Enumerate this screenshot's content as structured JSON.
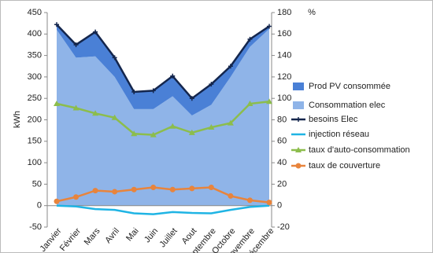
{
  "chart_data": {
    "type": "line",
    "y_label": "kWh",
    "y2_label": "%",
    "categories": [
      "Janvier",
      "Février",
      "Mars",
      "Avril",
      "Mai",
      "Juin",
      "Juillet",
      "Aout",
      "septembre",
      "Octobre",
      "Novembre",
      "Décembre"
    ],
    "ylim": [
      -50,
      450
    ],
    "yticks": [
      -50,
      0,
      50,
      100,
      150,
      200,
      250,
      300,
      350,
      400,
      450
    ],
    "y2lim": [
      -20,
      180
    ],
    "y2ticks": [
      -20,
      0,
      20,
      40,
      60,
      80,
      100,
      120,
      140,
      160,
      180
    ],
    "stacked": true,
    "series": [
      {
        "name": "Prod PV consommée",
        "kind": "area",
        "color": "#4a80d6",
        "values": [
          12,
          30,
          57,
          45,
          40,
          43,
          47,
          40,
          48,
          25,
          18,
          6
        ]
      },
      {
        "name": "Consommation  elec",
        "kind": "area",
        "color": "#8fb4e8",
        "values": [
          410,
          345,
          348,
          300,
          225,
          225,
          255,
          210,
          235,
          300,
          370,
          412
        ]
      },
      {
        "name": "besoins Elec",
        "kind": "line",
        "marker": "plus",
        "color": "#14264d",
        "values": [
          422,
          375,
          405,
          345,
          265,
          268,
          302,
          250,
          283,
          325,
          388,
          418
        ]
      },
      {
        "name": "injection réseau",
        "kind": "line",
        "color": "#1fb4e4",
        "values": [
          0,
          -2,
          -8,
          -10,
          -18,
          -20,
          -15,
          -17,
          -18,
          -10,
          -3,
          0
        ]
      },
      {
        "name": "taux d'auto-consommation",
        "kind": "line",
        "marker": "triangle",
        "axis": "y2",
        "color": "#8cbd4c",
        "values": [
          95,
          91,
          86,
          82,
          67,
          66,
          74,
          68,
          73,
          77,
          95,
          97
        ]
      },
      {
        "name": "taux de couverture",
        "kind": "line",
        "marker": "circle",
        "axis": "y2",
        "color": "#e8843c",
        "values": [
          4,
          8,
          14,
          13,
          15,
          17,
          15,
          16,
          17,
          9,
          5,
          3
        ]
      }
    ]
  }
}
